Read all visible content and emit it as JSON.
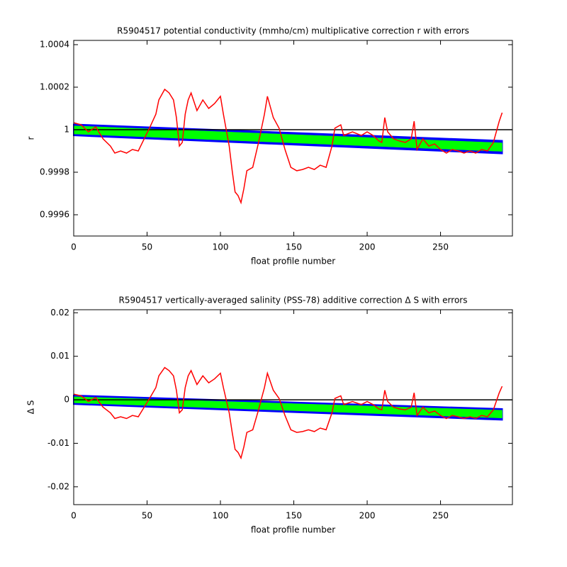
{
  "chart_data": [
    {
      "type": "line",
      "title": "R5904517 potential conductivity (mmho/cm) multiplicative correction r with errors",
      "xlabel": "float profile number",
      "ylabel": "r",
      "xlim": [
        0,
        299
      ],
      "ylim": [
        0.9995,
        1.00042
      ],
      "xticks": [
        0,
        50,
        100,
        150,
        200,
        250
      ],
      "yticks": [
        1.0004,
        1.0002,
        1,
        0.9998,
        0.9996
      ],
      "hline": {
        "value": 1,
        "color": "#000000"
      },
      "bands": [
        {
          "color": "#0000ff",
          "x": [
            0,
            292
          ],
          "upper": [
            1.000025,
            0.999948
          ],
          "lower": [
            0.999973,
            0.999888
          ]
        },
        {
          "color": "#00ff00",
          "x": [
            0,
            292
          ],
          "upper": [
            1.000018,
            0.999938
          ],
          "lower": [
            0.99998,
            0.999898
          ]
        }
      ],
      "x": [
        0,
        5,
        10,
        15,
        20,
        25,
        28,
        32,
        36,
        40,
        44,
        48,
        52,
        56,
        58,
        62,
        65,
        68,
        70,
        72,
        74,
        76,
        78,
        80,
        84,
        88,
        92,
        96,
        100,
        102,
        106,
        108,
        110,
        112,
        114,
        116,
        118,
        122,
        126,
        128,
        130,
        132,
        136,
        140,
        144,
        148,
        152,
        156,
        160,
        164,
        168,
        172,
        176,
        178,
        182,
        184,
        190,
        196,
        200,
        204,
        208,
        210,
        212,
        214,
        218,
        222,
        226,
        230,
        232,
        234,
        238,
        242,
        246,
        250,
        254,
        258,
        262,
        266,
        270,
        274,
        278,
        282,
        286,
        290,
        292
      ],
      "series": [
        {
          "color": "#ff0000",
          "values": [
            1.000033,
            1.000023,
            0.99999,
            1.000013,
            0.999957,
            0.999923,
            0.99989,
            0.9999,
            0.99989,
            0.999907,
            0.9999,
            0.999957,
            1.000013,
            1.000073,
            1.00014,
            1.00019,
            1.000173,
            1.00014,
            1.000057,
            0.999923,
            0.99994,
            1.000073,
            1.00014,
            1.000173,
            1.00009,
            1.00014,
            1.0001,
            1.000123,
            1.000157,
            1.000073,
            0.999923,
            0.999807,
            0.999707,
            0.99969,
            0.999657,
            0.999723,
            0.999807,
            0.999823,
            0.99994,
            1.000007,
            1.000073,
            1.000157,
            1.000057,
            1.000007,
            0.999907,
            0.999823,
            0.999807,
            0.999813,
            0.999823,
            0.999813,
            0.999833,
            0.999823,
            0.999923,
            1.000007,
            1.000023,
            0.999973,
            0.99999,
            0.999973,
            0.99999,
            0.999973,
            0.999947,
            0.99994,
            1.000057,
            0.99999,
            0.999957,
            0.999947,
            0.99994,
            0.999957,
            1.00004,
            0.999907,
            0.999957,
            0.999923,
            0.999933,
            0.999907,
            0.99989,
            0.999907,
            0.9999,
            0.99989,
            0.9999,
            0.99989,
            0.999907,
            0.9999,
            0.99994,
            1.00004,
            1.00008
          ]
        }
      ]
    },
    {
      "type": "line",
      "title": "R5904517 vertically-averaged salinity (PSS-78) additive correction Δ S with errors",
      "xlabel": "float profile number",
      "ylabel": "Δ S",
      "xlim": [
        0,
        299
      ],
      "ylim": [
        -0.0241,
        0.0207
      ],
      "xticks": [
        0,
        50,
        100,
        150,
        200,
        250
      ],
      "yticks": [
        0.02,
        0.01,
        0,
        -0.01,
        -0.02
      ],
      "hline": {
        "value": 0,
        "color": "#000000"
      },
      "bands": [
        {
          "color": "#0000ff",
          "x": [
            0,
            292
          ],
          "upper": [
            0.001,
            -0.0021
          ],
          "lower": [
            -0.001,
            -0.0046
          ]
        },
        {
          "color": "#00ff00",
          "x": [
            0,
            292
          ],
          "upper": [
            0.0007,
            -0.0024
          ],
          "lower": [
            -0.0007,
            -0.0042
          ]
        }
      ],
      "x": [
        0,
        5,
        10,
        15,
        20,
        25,
        28,
        32,
        36,
        40,
        44,
        48,
        52,
        56,
        58,
        62,
        65,
        68,
        70,
        72,
        74,
        76,
        78,
        80,
        84,
        88,
        92,
        96,
        100,
        102,
        106,
        108,
        110,
        112,
        114,
        116,
        118,
        122,
        126,
        128,
        130,
        132,
        136,
        140,
        144,
        148,
        152,
        156,
        160,
        164,
        168,
        172,
        176,
        178,
        182,
        184,
        190,
        196,
        200,
        204,
        208,
        210,
        212,
        214,
        218,
        222,
        226,
        230,
        232,
        234,
        238,
        242,
        246,
        250,
        254,
        258,
        262,
        266,
        270,
        274,
        278,
        282,
        286,
        290,
        292
      ],
      "series": [
        {
          "color": "#ff0000",
          "values": [
            0.0013,
            0.0009,
            -0.0004,
            0.0005,
            -0.0017,
            -0.003,
            -0.0043,
            -0.0039,
            -0.0043,
            -0.0036,
            -0.0039,
            -0.0017,
            0.0005,
            0.0028,
            0.0055,
            0.0074,
            0.0067,
            0.0055,
            0.0022,
            -0.003,
            -0.0023,
            0.0028,
            0.0055,
            0.0067,
            0.0035,
            0.0055,
            0.0039,
            0.0048,
            0.0061,
            0.0028,
            -0.003,
            -0.0075,
            -0.0114,
            -0.0121,
            -0.0134,
            -0.0108,
            -0.0075,
            -0.0069,
            -0.0023,
            0.0003,
            0.0028,
            0.0061,
            0.0022,
            0.0003,
            -0.0036,
            -0.0069,
            -0.0075,
            -0.0073,
            -0.0069,
            -0.0073,
            -0.0065,
            -0.0069,
            -0.003,
            0.0003,
            0.0009,
            -0.0011,
            -0.0004,
            -0.0011,
            -0.0004,
            -0.0011,
            -0.0021,
            -0.0023,
            0.0022,
            -0.0004,
            -0.0017,
            -0.0021,
            -0.0023,
            -0.0017,
            0.0016,
            -0.0036,
            -0.0017,
            -0.003,
            -0.0026,
            -0.0036,
            -0.0043,
            -0.0036,
            -0.0039,
            -0.0043,
            -0.0039,
            -0.0043,
            -0.0036,
            -0.0039,
            -0.0023,
            0.0016,
            0.0031
          ]
        }
      ]
    }
  ]
}
